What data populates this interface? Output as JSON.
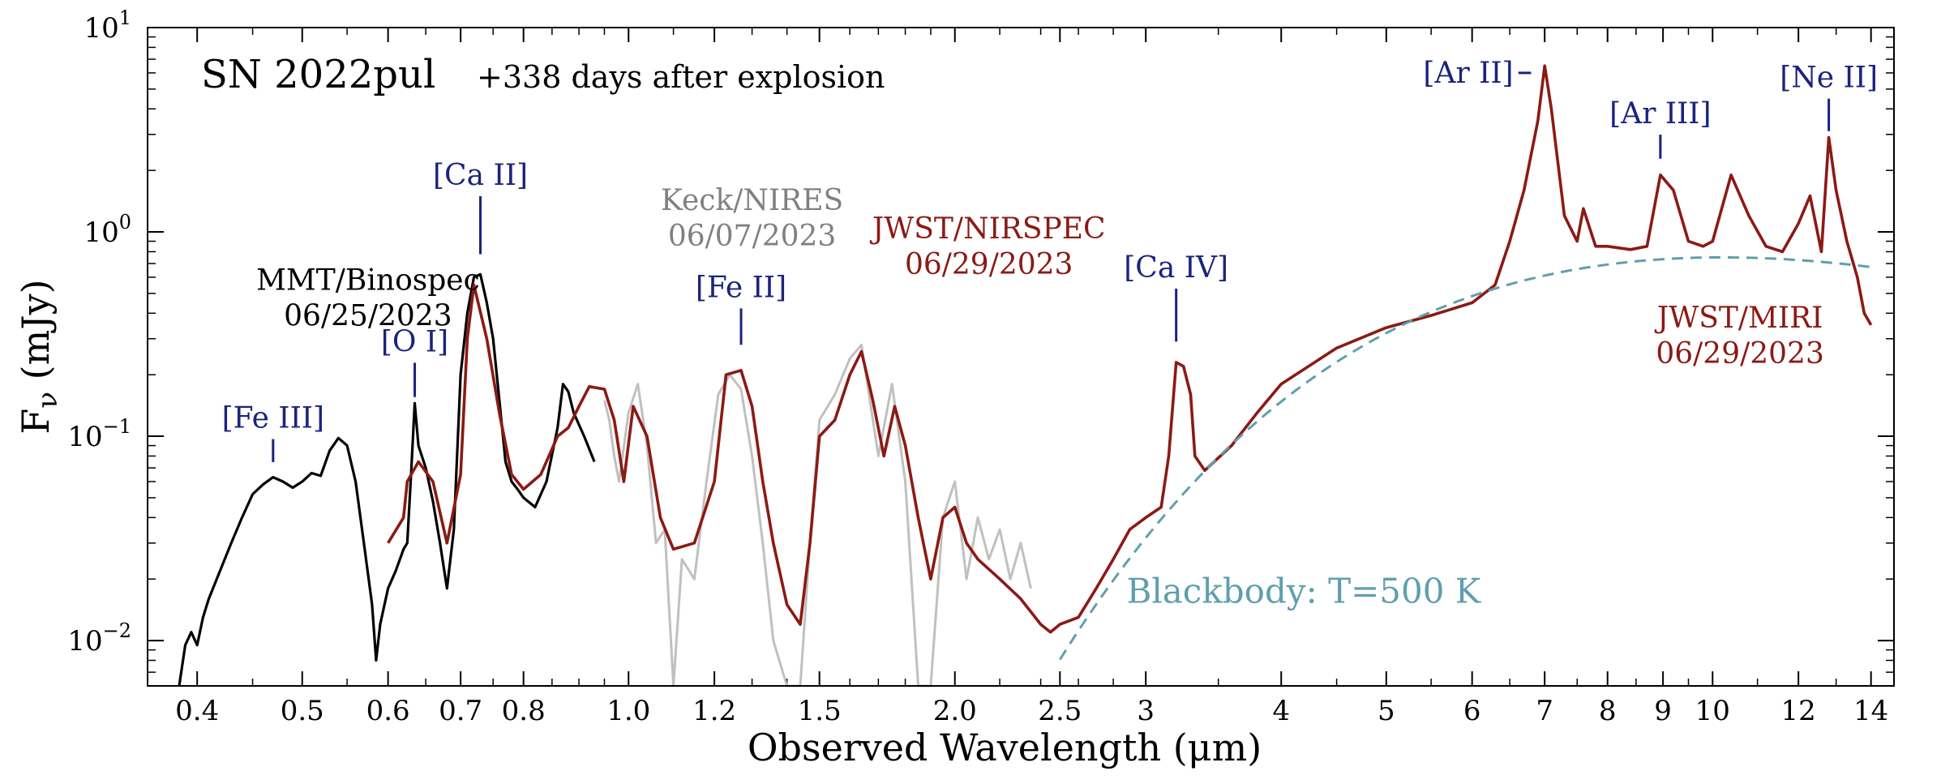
{
  "chart_data": {
    "type": "line",
    "title": "SN 2022pul",
    "subtitle": "+338 days after explosion",
    "xlabel": "Observed Wavelength (μm)",
    "ylabel": "F_ν (mJy)",
    "ylabel_main": "F",
    "ylabel_sub": "ν",
    "ylabel_unit": " (mJy)",
    "xscale": "log",
    "yscale": "log",
    "xlim": [
      0.36,
      14.7
    ],
    "ylim": [
      0.006,
      10
    ],
    "x_ticks": [
      {
        "value": 0.4,
        "label": "0.4"
      },
      {
        "value": 0.5,
        "label": "0.5"
      },
      {
        "value": 0.6,
        "label": "0.6"
      },
      {
        "value": 0.7,
        "label": "0.7"
      },
      {
        "value": 0.8,
        "label": "0.8"
      },
      {
        "value": 1.0,
        "label": "1.0"
      },
      {
        "value": 1.2,
        "label": "1.2"
      },
      {
        "value": 1.5,
        "label": "1.5"
      },
      {
        "value": 2.0,
        "label": "2.0"
      },
      {
        "value": 2.5,
        "label": "2.5"
      },
      {
        "value": 3,
        "label": "3"
      },
      {
        "value": 4,
        "label": "4"
      },
      {
        "value": 5,
        "label": "5"
      },
      {
        "value": 6,
        "label": "6"
      },
      {
        "value": 7,
        "label": "7"
      },
      {
        "value": 8,
        "label": "8"
      },
      {
        "value": 9,
        "label": "9"
      },
      {
        "value": 10,
        "label": "10"
      },
      {
        "value": 12,
        "label": "12"
      },
      {
        "value": 14,
        "label": "14"
      }
    ],
    "y_ticks": [
      {
        "value": 10,
        "base": "10",
        "exp": "1"
      },
      {
        "value": 1,
        "base": "10",
        "exp": "0"
      },
      {
        "value": 0.1,
        "base": "10",
        "exp": "−1"
      },
      {
        "value": 0.01,
        "base": "10",
        "exp": "−2"
      }
    ],
    "series": [
      {
        "name": "MMT/Binospec",
        "date": "06/25/2023",
        "color": "#000000",
        "points": [
          [
            0.385,
            0.006
          ],
          [
            0.39,
            0.0095
          ],
          [
            0.395,
            0.011
          ],
          [
            0.4,
            0.0095
          ],
          [
            0.405,
            0.013
          ],
          [
            0.41,
            0.016
          ],
          [
            0.42,
            0.022
          ],
          [
            0.43,
            0.03
          ],
          [
            0.44,
            0.04
          ],
          [
            0.45,
            0.052
          ],
          [
            0.46,
            0.058
          ],
          [
            0.47,
            0.063
          ],
          [
            0.48,
            0.06
          ],
          [
            0.49,
            0.056
          ],
          [
            0.5,
            0.06
          ],
          [
            0.51,
            0.066
          ],
          [
            0.52,
            0.064
          ],
          [
            0.53,
            0.085
          ],
          [
            0.54,
            0.098
          ],
          [
            0.55,
            0.09
          ],
          [
            0.56,
            0.06
          ],
          [
            0.57,
            0.03
          ],
          [
            0.58,
            0.015
          ],
          [
            0.585,
            0.008
          ],
          [
            0.59,
            0.012
          ],
          [
            0.6,
            0.018
          ],
          [
            0.61,
            0.022
          ],
          [
            0.62,
            0.028
          ],
          [
            0.625,
            0.03
          ],
          [
            0.63,
            0.065
          ],
          [
            0.635,
            0.145
          ],
          [
            0.64,
            0.09
          ],
          [
            0.65,
            0.07
          ],
          [
            0.66,
            0.048
          ],
          [
            0.67,
            0.03
          ],
          [
            0.68,
            0.018
          ],
          [
            0.69,
            0.035
          ],
          [
            0.7,
            0.2
          ],
          [
            0.71,
            0.4
          ],
          [
            0.72,
            0.6
          ],
          [
            0.73,
            0.62
          ],
          [
            0.74,
            0.45
          ],
          [
            0.75,
            0.3
          ],
          [
            0.76,
            0.15
          ],
          [
            0.77,
            0.075
          ],
          [
            0.78,
            0.06
          ],
          [
            0.79,
            0.055
          ],
          [
            0.8,
            0.05
          ],
          [
            0.82,
            0.045
          ],
          [
            0.84,
            0.06
          ],
          [
            0.86,
            0.11
          ],
          [
            0.87,
            0.18
          ],
          [
            0.88,
            0.165
          ],
          [
            0.89,
            0.13
          ],
          [
            0.91,
            0.1
          ],
          [
            0.93,
            0.075
          ]
        ]
      },
      {
        "name": "Keck/NIRES",
        "date": "06/07/2023",
        "color": "#c0c0c0",
        "points": [
          [
            0.95,
            0.15
          ],
          [
            0.96,
            0.12
          ],
          [
            0.97,
            0.08
          ],
          [
            0.98,
            0.06
          ],
          [
            1.0,
            0.13
          ],
          [
            1.02,
            0.18
          ],
          [
            1.04,
            0.09
          ],
          [
            1.06,
            0.03
          ],
          [
            1.08,
            0.035
          ],
          [
            1.1,
            0.005
          ],
          [
            1.12,
            0.025
          ],
          [
            1.15,
            0.02
          ],
          [
            1.18,
            0.06
          ],
          [
            1.21,
            0.16
          ],
          [
            1.24,
            0.2
          ],
          [
            1.27,
            0.17
          ],
          [
            1.3,
            0.08
          ],
          [
            1.33,
            0.03
          ],
          [
            1.36,
            0.01
          ],
          [
            1.4,
            0.005
          ],
          [
            1.44,
            0.005
          ],
          [
            1.47,
            0.03
          ],
          [
            1.5,
            0.12
          ],
          [
            1.55,
            0.16
          ],
          [
            1.6,
            0.24
          ],
          [
            1.64,
            0.28
          ],
          [
            1.7,
            0.08
          ],
          [
            1.75,
            0.18
          ],
          [
            1.8,
            0.06
          ],
          [
            1.85,
            0.005
          ],
          [
            1.9,
            0.005
          ],
          [
            1.95,
            0.04
          ],
          [
            2.0,
            0.06
          ],
          [
            2.05,
            0.02
          ],
          [
            2.1,
            0.04
          ],
          [
            2.15,
            0.025
          ],
          [
            2.2,
            0.035
          ],
          [
            2.25,
            0.02
          ],
          [
            2.3,
            0.03
          ],
          [
            2.35,
            0.018
          ]
        ]
      },
      {
        "name": "JWST/NIRSPEC",
        "date": "06/29/2023",
        "color": "#8b1a14",
        "points": [
          [
            0.6,
            0.03
          ],
          [
            0.62,
            0.04
          ],
          [
            0.625,
            0.06
          ],
          [
            0.64,
            0.075
          ],
          [
            0.66,
            0.06
          ],
          [
            0.68,
            0.03
          ],
          [
            0.7,
            0.065
          ],
          [
            0.71,
            0.3
          ],
          [
            0.72,
            0.55
          ],
          [
            0.74,
            0.3
          ],
          [
            0.76,
            0.13
          ],
          [
            0.78,
            0.065
          ],
          [
            0.8,
            0.055
          ],
          [
            0.83,
            0.065
          ],
          [
            0.86,
            0.1
          ],
          [
            0.88,
            0.11
          ],
          [
            0.9,
            0.14
          ],
          [
            0.92,
            0.175
          ],
          [
            0.95,
            0.17
          ],
          [
            0.97,
            0.12
          ],
          [
            0.99,
            0.06
          ],
          [
            1.01,
            0.14
          ],
          [
            1.04,
            0.1
          ],
          [
            1.07,
            0.04
          ],
          [
            1.1,
            0.028
          ],
          [
            1.15,
            0.03
          ],
          [
            1.2,
            0.06
          ],
          [
            1.23,
            0.2
          ],
          [
            1.27,
            0.21
          ],
          [
            1.3,
            0.14
          ],
          [
            1.33,
            0.06
          ],
          [
            1.36,
            0.03
          ],
          [
            1.4,
            0.015
          ],
          [
            1.44,
            0.012
          ],
          [
            1.47,
            0.03
          ],
          [
            1.5,
            0.1
          ],
          [
            1.55,
            0.12
          ],
          [
            1.6,
            0.2
          ],
          [
            1.64,
            0.26
          ],
          [
            1.68,
            0.15
          ],
          [
            1.72,
            0.08
          ],
          [
            1.76,
            0.14
          ],
          [
            1.8,
            0.09
          ],
          [
            1.85,
            0.04
          ],
          [
            1.9,
            0.02
          ],
          [
            1.95,
            0.04
          ],
          [
            2.0,
            0.045
          ],
          [
            2.05,
            0.03
          ],
          [
            2.1,
            0.025
          ],
          [
            2.2,
            0.02
          ],
          [
            2.3,
            0.016
          ],
          [
            2.4,
            0.012
          ],
          [
            2.45,
            0.011
          ],
          [
            2.5,
            0.012
          ],
          [
            2.6,
            0.013
          ],
          [
            2.7,
            0.018
          ],
          [
            2.8,
            0.025
          ],
          [
            2.9,
            0.035
          ],
          [
            3.0,
            0.04
          ],
          [
            3.1,
            0.045
          ],
          [
            3.15,
            0.08
          ],
          [
            3.2,
            0.23
          ],
          [
            3.25,
            0.22
          ],
          [
            3.3,
            0.16
          ],
          [
            3.33,
            0.08
          ],
          [
            3.4,
            0.068
          ],
          [
            3.6,
            0.09
          ],
          [
            3.8,
            0.13
          ],
          [
            4.0,
            0.18
          ],
          [
            4.5,
            0.27
          ],
          [
            5.0,
            0.34
          ]
        ]
      },
      {
        "name": "JWST/MIRI",
        "date": "06/29/2023",
        "color": "#8b1a14",
        "points": [
          [
            5.0,
            0.34
          ],
          [
            5.5,
            0.39
          ],
          [
            6.0,
            0.45
          ],
          [
            6.3,
            0.55
          ],
          [
            6.5,
            0.9
          ],
          [
            6.7,
            1.6
          ],
          [
            6.9,
            3.5
          ],
          [
            7.0,
            6.5
          ],
          [
            7.1,
            4.0
          ],
          [
            7.3,
            1.2
          ],
          [
            7.5,
            0.9
          ],
          [
            7.6,
            1.3
          ],
          [
            7.8,
            0.85
          ],
          [
            8.0,
            0.85
          ],
          [
            8.4,
            0.82
          ],
          [
            8.7,
            0.85
          ],
          [
            8.95,
            1.9
          ],
          [
            9.2,
            1.6
          ],
          [
            9.5,
            0.9
          ],
          [
            9.8,
            0.85
          ],
          [
            10.0,
            0.9
          ],
          [
            10.4,
            1.9
          ],
          [
            10.8,
            1.2
          ],
          [
            11.2,
            0.85
          ],
          [
            11.6,
            0.8
          ],
          [
            12.0,
            1.1
          ],
          [
            12.3,
            1.5
          ],
          [
            12.6,
            0.8
          ],
          [
            12.8,
            2.9
          ],
          [
            13.0,
            1.6
          ],
          [
            13.3,
            0.9
          ],
          [
            13.6,
            0.6
          ],
          [
            13.8,
            0.4
          ],
          [
            14.0,
            0.35
          ]
        ]
      },
      {
        "name": "Blackbody: T=500 K",
        "color": "#5f9fad",
        "style": "dashed",
        "temperature_K": 500
      }
    ],
    "line_labels": [
      {
        "text": "[Fe III]",
        "x": 0.47,
        "y": 0.11,
        "tick_y": 0.072
      },
      {
        "text": "[O I]",
        "x": 0.635,
        "y": 0.26,
        "tick_y": 0.15
      },
      {
        "text": "[Ca II]",
        "x": 0.73,
        "y": 1.7,
        "tick_y": 0.75
      },
      {
        "text": "[Fe II]",
        "x": 1.27,
        "y": 0.48,
        "tick_y": 0.27
      },
      {
        "text": "[Ca IV]",
        "x": 3.2,
        "y": 0.6,
        "tick_y": 0.28
      },
      {
        "text": "[Ar II]",
        "x": 6.15,
        "y": 6.0,
        "tick_y": 6.0
      },
      {
        "text": "[Ar III]",
        "x": 8.95,
        "y": 3.4,
        "tick_y": 2.2
      },
      {
        "text": "[Ne II]",
        "x": 12.8,
        "y": 5.1,
        "tick_y": 3.0
      }
    ]
  }
}
